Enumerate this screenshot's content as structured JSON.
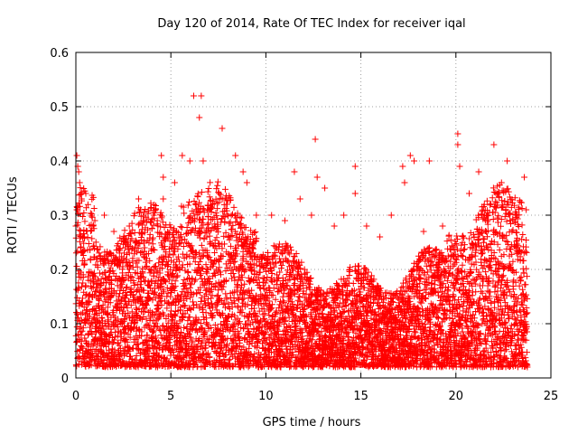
{
  "chart_data": {
    "type": "scatter",
    "title": "Day 120 of 2014, Rate Of TEC Index for receiver iqal",
    "xlabel": "GPS time / hours",
    "ylabel": "ROTI / TECUs",
    "xlim": [
      0,
      25
    ],
    "ylim": [
      0,
      0.6
    ],
    "xticks": [
      0,
      5,
      10,
      15,
      20,
      25
    ],
    "xtick_labels": [
      "0",
      "5",
      "10",
      "15",
      "20",
      "25"
    ],
    "yticks": [
      0,
      0.1,
      0.2,
      0.3,
      0.4,
      0.5,
      0.6
    ],
    "ytick_labels": [
      "0",
      "0.1",
      "0.2",
      "0.3",
      "0.4",
      "0.5",
      "0.6"
    ],
    "grid": true,
    "marker": "+",
    "marker_color": "#ff0000",
    "series": [
      {
        "name": "ROTI",
        "envelope_note": "dense band of points 0.01–0.30 TECU/min across 0–23.7 h",
        "points": [
          [
            0.05,
            0.41
          ],
          [
            0.1,
            0.39
          ],
          [
            0.15,
            0.38
          ],
          [
            0.2,
            0.36
          ],
          [
            0.3,
            0.33
          ],
          [
            0.05,
            0.31
          ],
          [
            0.0,
            0.28
          ],
          [
            0.45,
            0.26
          ],
          [
            1.0,
            0.29
          ],
          [
            1.5,
            0.3
          ],
          [
            2.0,
            0.27
          ],
          [
            2.6,
            0.24
          ],
          [
            3.3,
            0.33
          ],
          [
            3.4,
            0.31
          ],
          [
            4.1,
            0.3
          ],
          [
            4.5,
            0.41
          ],
          [
            4.6,
            0.37
          ],
          [
            4.6,
            0.33
          ],
          [
            5.2,
            0.36
          ],
          [
            5.6,
            0.41
          ],
          [
            6.0,
            0.4
          ],
          [
            6.2,
            0.52
          ],
          [
            6.6,
            0.52
          ],
          [
            6.5,
            0.48
          ],
          [
            6.7,
            0.4
          ],
          [
            7.2,
            0.32
          ],
          [
            7.7,
            0.46
          ],
          [
            8.4,
            0.41
          ],
          [
            8.8,
            0.38
          ],
          [
            9.0,
            0.36
          ],
          [
            9.5,
            0.3
          ],
          [
            10.3,
            0.3
          ],
          [
            11.0,
            0.29
          ],
          [
            11.5,
            0.38
          ],
          [
            11.8,
            0.33
          ],
          [
            12.4,
            0.3
          ],
          [
            12.6,
            0.44
          ],
          [
            12.7,
            0.37
          ],
          [
            13.1,
            0.35
          ],
          [
            13.6,
            0.28
          ],
          [
            14.1,
            0.3
          ],
          [
            14.7,
            0.39
          ],
          [
            14.7,
            0.34
          ],
          [
            15.3,
            0.28
          ],
          [
            16.0,
            0.26
          ],
          [
            16.6,
            0.3
          ],
          [
            17.2,
            0.39
          ],
          [
            17.3,
            0.36
          ],
          [
            17.6,
            0.41
          ],
          [
            17.8,
            0.4
          ],
          [
            18.3,
            0.27
          ],
          [
            18.6,
            0.4
          ],
          [
            19.3,
            0.28
          ],
          [
            20.1,
            0.45
          ],
          [
            20.1,
            0.43
          ],
          [
            20.2,
            0.39
          ],
          [
            20.7,
            0.34
          ],
          [
            21.2,
            0.38
          ],
          [
            21.5,
            0.3
          ],
          [
            22.0,
            0.43
          ],
          [
            22.4,
            0.36
          ],
          [
            22.7,
            0.4
          ],
          [
            23.2,
            0.3
          ],
          [
            23.6,
            0.37
          ],
          [
            23.7,
            0.31
          ]
        ]
      }
    ]
  }
}
